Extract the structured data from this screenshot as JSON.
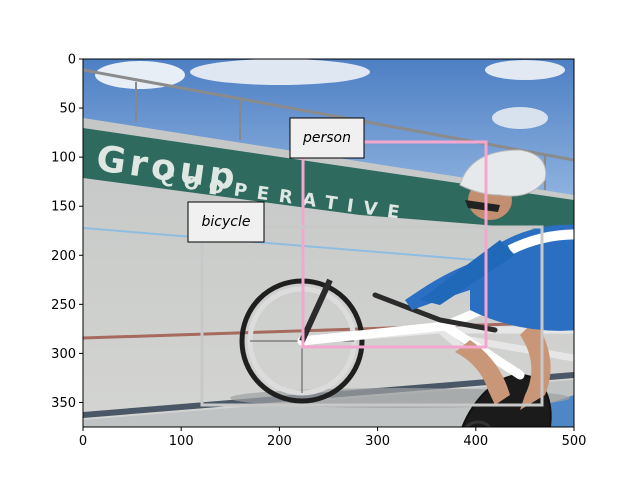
{
  "image": {
    "scene": "cyclist-on-velodrome",
    "width": 500,
    "height": 375
  },
  "axes": {
    "x_ticks": [
      "0",
      "100",
      "200",
      "300",
      "400",
      "500"
    ],
    "y_ticks": [
      "0",
      "50",
      "100",
      "150",
      "200",
      "250",
      "300",
      "350"
    ]
  },
  "annotations": [
    {
      "label": "person",
      "color": "#f4a6cf"
    },
    {
      "label": "bicycle",
      "color": "#c8c8c8"
    }
  ],
  "scene_text": {
    "banner": "Group"
  }
}
